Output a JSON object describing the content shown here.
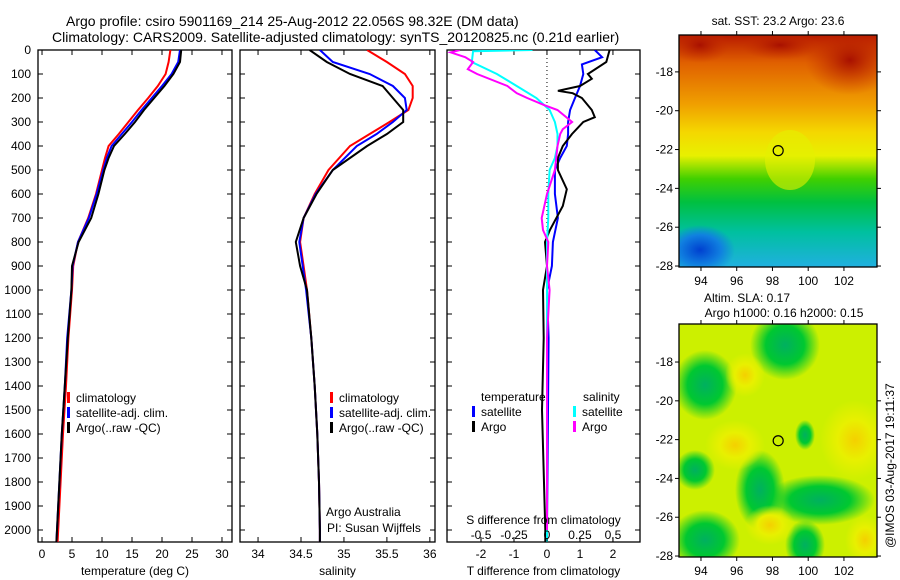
{
  "header": {
    "title_line1": "Argo profile: csiro 5901169_214 25-Aug-2012 22.056S 98.32E (DM data)",
    "title_line2": "Climatology: CARS2009. Satellite-adjusted climatology: synTS_20120825.nc (0.21d earlier)"
  },
  "credit": {
    "line1": "Argo Australia",
    "line2": "PI: Susan Wijffels"
  },
  "timestamp": "@IMOS 03-Aug-2017 19:11:37",
  "colors": {
    "red": "#ff0000",
    "blue": "#0000ff",
    "black": "#000000",
    "cyan": "#00ffff",
    "magenta": "#ff00ff"
  },
  "chart_data": [
    {
      "type": "line",
      "id": "temperature",
      "xlabel": "temperature (deg C)",
      "ylabel": "",
      "xlim": [
        -0.67,
        31.67
      ],
      "ylim": [
        2050,
        0
      ],
      "xticks": [
        0,
        5,
        10,
        15,
        20,
        25,
        30
      ],
      "xticklabels": [
        "0",
        "5",
        "10",
        "15",
        "20",
        "25",
        "30"
      ],
      "yticks": [
        0,
        100,
        200,
        300,
        400,
        500,
        600,
        700,
        800,
        900,
        1000,
        1100,
        1200,
        1300,
        1400,
        1500,
        1600,
        1700,
        1800,
        1900,
        2000
      ],
      "yticklabels": [
        "0",
        "100",
        "200",
        "300",
        "400",
        "500",
        "600",
        "700",
        "800",
        "900",
        "1000",
        "1100",
        "1200",
        "1300",
        "1400",
        "1500",
        "1600",
        "1700",
        "1800",
        "1900",
        "2000"
      ],
      "depth": [
        0,
        50,
        100,
        150,
        200,
        250,
        300,
        350,
        400,
        450,
        500,
        600,
        700,
        800,
        900,
        1000,
        1200,
        1400,
        1600,
        1800,
        2000,
        2050
      ],
      "legend": [
        "climatology",
        "satellite-adj. clim.",
        "Argo(..raw -QC)"
      ],
      "series": [
        {
          "name": "climatology",
          "color": "#ff0000",
          "values": [
            21.4,
            21.1,
            20.6,
            19.3,
            17.7,
            16.0,
            14.4,
            12.8,
            11.1,
            10.5,
            10.0,
            9.0,
            7.7,
            6.0,
            5.2,
            5.0,
            4.4,
            4.0,
            3.5,
            3.1,
            2.7,
            2.6
          ]
        },
        {
          "name": "satellite-adj. clim.",
          "color": "#0000ff",
          "values": [
            23.0,
            22.7,
            21.6,
            20.0,
            18.3,
            16.6,
            15.0,
            13.3,
            11.6,
            10.8,
            10.2,
            9.1,
            7.8,
            6.0,
            5.1,
            4.9,
            4.2,
            3.8,
            3.3,
            2.9,
            2.5,
            2.4
          ]
        },
        {
          "name": "Argo(..raw -QC)",
          "color": "#000000",
          "values": [
            23.2,
            23.0,
            21.9,
            20.4,
            18.7,
            17.0,
            15.5,
            13.8,
            12.0,
            11.1,
            10.4,
            9.4,
            8.2,
            6.1,
            5.0,
            4.9,
            4.3,
            3.8,
            3.3,
            2.9,
            2.5,
            2.4
          ]
        }
      ]
    },
    {
      "type": "line",
      "id": "salinity",
      "xlabel": "salinity",
      "xlim": [
        33.79,
        36.06
      ],
      "ylim": [
        2050,
        0
      ],
      "xticks": [
        34,
        34.5,
        35,
        35.5,
        36
      ],
      "xticklabels": [
        "34",
        "34.5",
        "35",
        "35.5",
        "36"
      ],
      "depth": [
        0,
        50,
        100,
        150,
        200,
        250,
        300,
        350,
        400,
        500,
        600,
        700,
        800,
        900,
        1000,
        1200,
        1400,
        1600,
        1800,
        2000,
        2050
      ],
      "legend": [
        "climatology",
        "satellite-adj. clim.",
        "Argo(..raw -QC)"
      ],
      "series": [
        {
          "name": "climatology",
          "color": "#ff0000",
          "values": [
            35.27,
            35.5,
            35.71,
            35.8,
            35.8,
            35.75,
            35.53,
            35.3,
            35.07,
            34.82,
            34.66,
            34.53,
            34.49,
            34.53,
            34.57,
            34.62,
            34.66,
            34.69,
            34.71,
            34.72,
            34.72
          ]
        },
        {
          "name": "satellite-adj. clim.",
          "color": "#0000ff",
          "values": [
            34.72,
            34.87,
            35.3,
            35.57,
            35.71,
            35.73,
            35.57,
            35.38,
            35.15,
            34.87,
            34.67,
            34.53,
            34.48,
            34.52,
            34.56,
            34.62,
            34.66,
            34.69,
            34.71,
            34.72,
            34.72
          ]
        },
        {
          "name": "Argo(..raw -QC)",
          "color": "#000000",
          "values": [
            34.6,
            34.8,
            35.07,
            35.45,
            35.57,
            35.69,
            35.69,
            35.5,
            35.27,
            34.87,
            34.68,
            34.53,
            34.44,
            34.49,
            34.57,
            34.62,
            34.66,
            34.69,
            34.71,
            34.72,
            34.72
          ]
        }
      ]
    },
    {
      "type": "line",
      "id": "difference",
      "xlabel": "T difference from climatology",
      "x2label": "S difference from climatology",
      "xlim": [
        -3.03,
        2.82
      ],
      "x2lim": [
        -0.758,
        0.705
      ],
      "ylim": [
        2050,
        0
      ],
      "xticks": [
        -2,
        -1,
        0,
        1,
        2
      ],
      "xticklabels": [
        "-2",
        "-1",
        "0",
        "1",
        "2"
      ],
      "x2ticks": [
        -0.5,
        -0.25,
        0,
        0.25,
        0.5
      ],
      "x2ticklabels": [
        "-0.5",
        "-0.25",
        "0",
        "0.25",
        "0.5"
      ],
      "legend_headers": [
        "temperature",
        "salinity"
      ],
      "legend": [
        "satellite",
        "Argo",
        "satellite",
        "Argo"
      ],
      "series": [
        {
          "name": "temperature satellite",
          "axis": "T",
          "color": "#0000ff",
          "depth": [
            0,
            30,
            60,
            100,
            150,
            200,
            250,
            300,
            350,
            400,
            450,
            500,
            600,
            700,
            800,
            900,
            1000,
            1200,
            1500,
            2000,
            2050
          ],
          "values": [
            1.45,
            1.67,
            1.06,
            1.1,
            1.0,
            0.85,
            0.7,
            0.64,
            0.64,
            0.6,
            0.4,
            0.24,
            0.24,
            0.33,
            0.18,
            0.15,
            0.0,
            0.05,
            0.03,
            0.0,
            0.0
          ]
        },
        {
          "name": "temperature Argo",
          "axis": "T",
          "color": "#000000",
          "depth": [
            0,
            50,
            100,
            120,
            150,
            170,
            180,
            200,
            250,
            280,
            300,
            350,
            400,
            450,
            500,
            580,
            650,
            750,
            800,
            900,
            1000,
            1200,
            1500,
            2000,
            2050
          ],
          "values": [
            1.9,
            1.8,
            1.24,
            1.36,
            1.0,
            0.33,
            0.78,
            1.06,
            1.36,
            1.45,
            1.1,
            0.76,
            0.48,
            0.33,
            0.33,
            0.6,
            0.48,
            0.09,
            -0.06,
            0.0,
            -0.12,
            -0.1,
            -0.15,
            -0.05,
            -0.05
          ]
        },
        {
          "name": "salinity satellite",
          "axis": "S",
          "color": "#00ffff",
          "depth": [
            0,
            5,
            50,
            100,
            150,
            200,
            250,
            300,
            350,
            400,
            450,
            500,
            600,
            700,
            800,
            1200,
            2000,
            2050
          ],
          "values": [
            -0.11,
            -0.56,
            -0.57,
            -0.38,
            -0.23,
            -0.08,
            0.02,
            0.06,
            0.08,
            0.08,
            0.06,
            0.02,
            0.01,
            0.01,
            0.0,
            0.0,
            0.0,
            0.0
          ]
        },
        {
          "name": "salinity Argo",
          "axis": "S",
          "color": "#ff00ff",
          "depth": [
            0,
            10,
            30,
            50,
            80,
            100,
            150,
            180,
            200,
            230,
            250,
            300,
            330,
            350,
            400,
            500,
            600,
            700,
            750,
            800,
            900,
            1000,
            1200,
            1500,
            2000
          ],
          "values": [
            -0.66,
            -0.73,
            -0.62,
            -0.56,
            -0.6,
            -0.53,
            -0.3,
            -0.23,
            -0.15,
            -0.02,
            0.08,
            0.19,
            0.12,
            0.1,
            0.08,
            0.06,
            0.0,
            -0.04,
            -0.03,
            0.01,
            0.0,
            0.02,
            0.0,
            0.0,
            0.0
          ]
        }
      ]
    },
    {
      "type": "heatmap",
      "id": "sst-map",
      "title": "sat. SST: 23.2 Argo: 23.6",
      "xlim": [
        92.77,
        103.85
      ],
      "ylim": [
        -16.1,
        -28.05
      ],
      "xticks": [
        94,
        96,
        98,
        100,
        102
      ],
      "xticklabels": [
        "94",
        "96",
        "98",
        "100",
        "102"
      ],
      "yticks": [
        -18,
        -20,
        -22,
        -24,
        -26,
        -28
      ],
      "yticklabels": [
        "-18",
        "-20",
        "-22",
        "-24",
        "-26",
        "-28"
      ],
      "marker": {
        "lon": 98.32,
        "lat": -22.056
      }
    },
    {
      "type": "heatmap",
      "id": "sla-map",
      "title_line1": "Altim. SLA: 0.17",
      "title_line2": "Argo h1000: 0.16 h2000: 0.15",
      "xlim": [
        92.77,
        103.85
      ],
      "ylim": [
        -16.04,
        -28.05
      ],
      "xticks": [
        94,
        96,
        98,
        100,
        102
      ],
      "xticklabels": [
        "94",
        "96",
        "98",
        "100",
        "102"
      ],
      "yticks": [
        -18,
        -20,
        -22,
        -24,
        -26,
        -28
      ],
      "yticklabels": [
        "-18",
        "-20",
        "-22",
        "-24",
        "-26",
        "-28"
      ],
      "marker": {
        "lon": 98.32,
        "lat": -22.056
      }
    }
  ]
}
